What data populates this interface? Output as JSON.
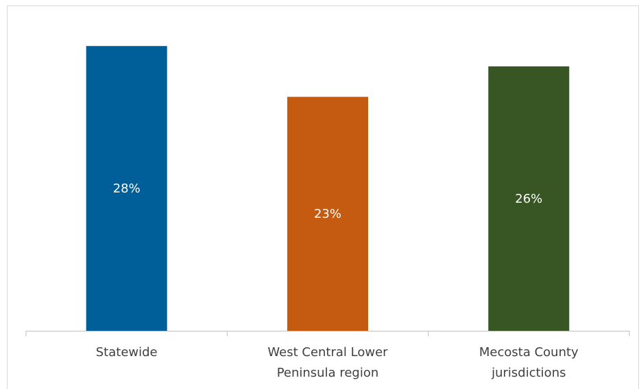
{
  "chart_data": {
    "type": "bar",
    "categories": [
      [
        "Statewide"
      ],
      [
        "West Central Lower",
        "Peninsula region"
      ],
      [
        "Mecosta County",
        "jurisdictions"
      ]
    ],
    "values": [
      0.28,
      0.23,
      0.26
    ],
    "data_labels": [
      "28%",
      "23%",
      "26%"
    ],
    "colors": [
      "#005f99",
      "#c55a11",
      "#375623"
    ],
    "title": "",
    "xlabel": "",
    "ylabel": "",
    "ylim": [
      0,
      0.3
    ],
    "grid": false,
    "legend": "none"
  }
}
